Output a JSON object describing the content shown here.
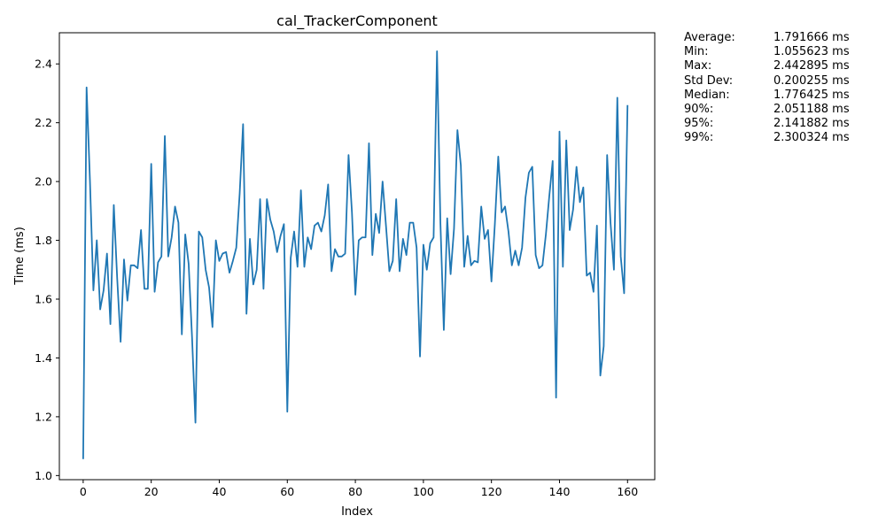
{
  "chart_data": {
    "type": "line",
    "title": "cal_TrackerComponent",
    "xlabel": "Index",
    "ylabel": "Time (ms)",
    "xlim": [
      -7,
      168
    ],
    "ylim": [
      0.986,
      2.506
    ],
    "x_ticks": [
      0,
      20,
      40,
      60,
      80,
      100,
      120,
      140,
      160
    ],
    "x_tick_labels": [
      "0",
      "20",
      "40",
      "60",
      "80",
      "100",
      "120",
      "140",
      "160"
    ],
    "y_ticks": [
      1.0,
      1.2,
      1.4,
      1.6,
      1.8,
      2.0,
      2.2,
      2.4
    ],
    "y_tick_labels": [
      "1.0",
      "1.2",
      "1.4",
      "1.6",
      "1.8",
      "2.0",
      "2.2",
      "2.4"
    ],
    "grid": false,
    "line_color": "#1f77b4",
    "series": [
      {
        "values": [
          1.056,
          2.32,
          2.0,
          1.63,
          1.8,
          1.565,
          1.63,
          1.755,
          1.515,
          1.92,
          1.67,
          1.455,
          1.735,
          1.595,
          1.715,
          1.715,
          1.705,
          1.835,
          1.635,
          1.635,
          2.06,
          1.625,
          1.725,
          1.745,
          2.155,
          1.745,
          1.81,
          1.915,
          1.86,
          1.48,
          1.82,
          1.72,
          1.47,
          1.18,
          1.83,
          1.81,
          1.7,
          1.64,
          1.505,
          1.8,
          1.73,
          1.755,
          1.76,
          1.69,
          1.73,
          1.775,
          1.96,
          2.195,
          1.55,
          1.805,
          1.65,
          1.7,
          1.94,
          1.635,
          1.94,
          1.87,
          1.83,
          1.76,
          1.815,
          1.855,
          1.217,
          1.74,
          1.83,
          1.71,
          1.97,
          1.71,
          1.81,
          1.77,
          1.85,
          1.86,
          1.83,
          1.885,
          1.99,
          1.695,
          1.77,
          1.745,
          1.745,
          1.755,
          2.09,
          1.895,
          1.615,
          1.8,
          1.81,
          1.81,
          2.13,
          1.75,
          1.89,
          1.825,
          2.0,
          1.85,
          1.695,
          1.73,
          1.94,
          1.695,
          1.805,
          1.75,
          1.86,
          1.86,
          1.775,
          1.405,
          1.785,
          1.7,
          1.79,
          1.81,
          2.443,
          1.86,
          1.495,
          1.875,
          1.685,
          1.84,
          2.175,
          2.055,
          1.71,
          1.815,
          1.715,
          1.73,
          1.725,
          1.915,
          1.805,
          1.835,
          1.66,
          1.855,
          2.085,
          1.895,
          1.915,
          1.83,
          1.715,
          1.765,
          1.715,
          1.775,
          1.945,
          2.03,
          2.05,
          1.75,
          1.705,
          1.715,
          1.82,
          1.95,
          2.07,
          1.265,
          2.17,
          1.71,
          2.14,
          1.835,
          1.905,
          2.05,
          1.93,
          1.98,
          1.68,
          1.69,
          1.625,
          1.85,
          1.34,
          1.44,
          2.09,
          1.86,
          1.7,
          2.285,
          1.745,
          1.62,
          2.26
        ]
      }
    ]
  },
  "stats": [
    {
      "label": "Average:",
      "value": "1.791666 ms"
    },
    {
      "label": "Min:",
      "value": "1.055623 ms"
    },
    {
      "label": "Max:",
      "value": "2.442895 ms"
    },
    {
      "label": "Std Dev:",
      "value": "0.200255 ms"
    },
    {
      "label": "Median:",
      "value": "1.776425 ms"
    },
    {
      "label": "90%:",
      "value": "2.051188 ms"
    },
    {
      "label": "95%:",
      "value": "2.141882 ms"
    },
    {
      "label": "99%:",
      "value": "2.300324 ms"
    }
  ]
}
